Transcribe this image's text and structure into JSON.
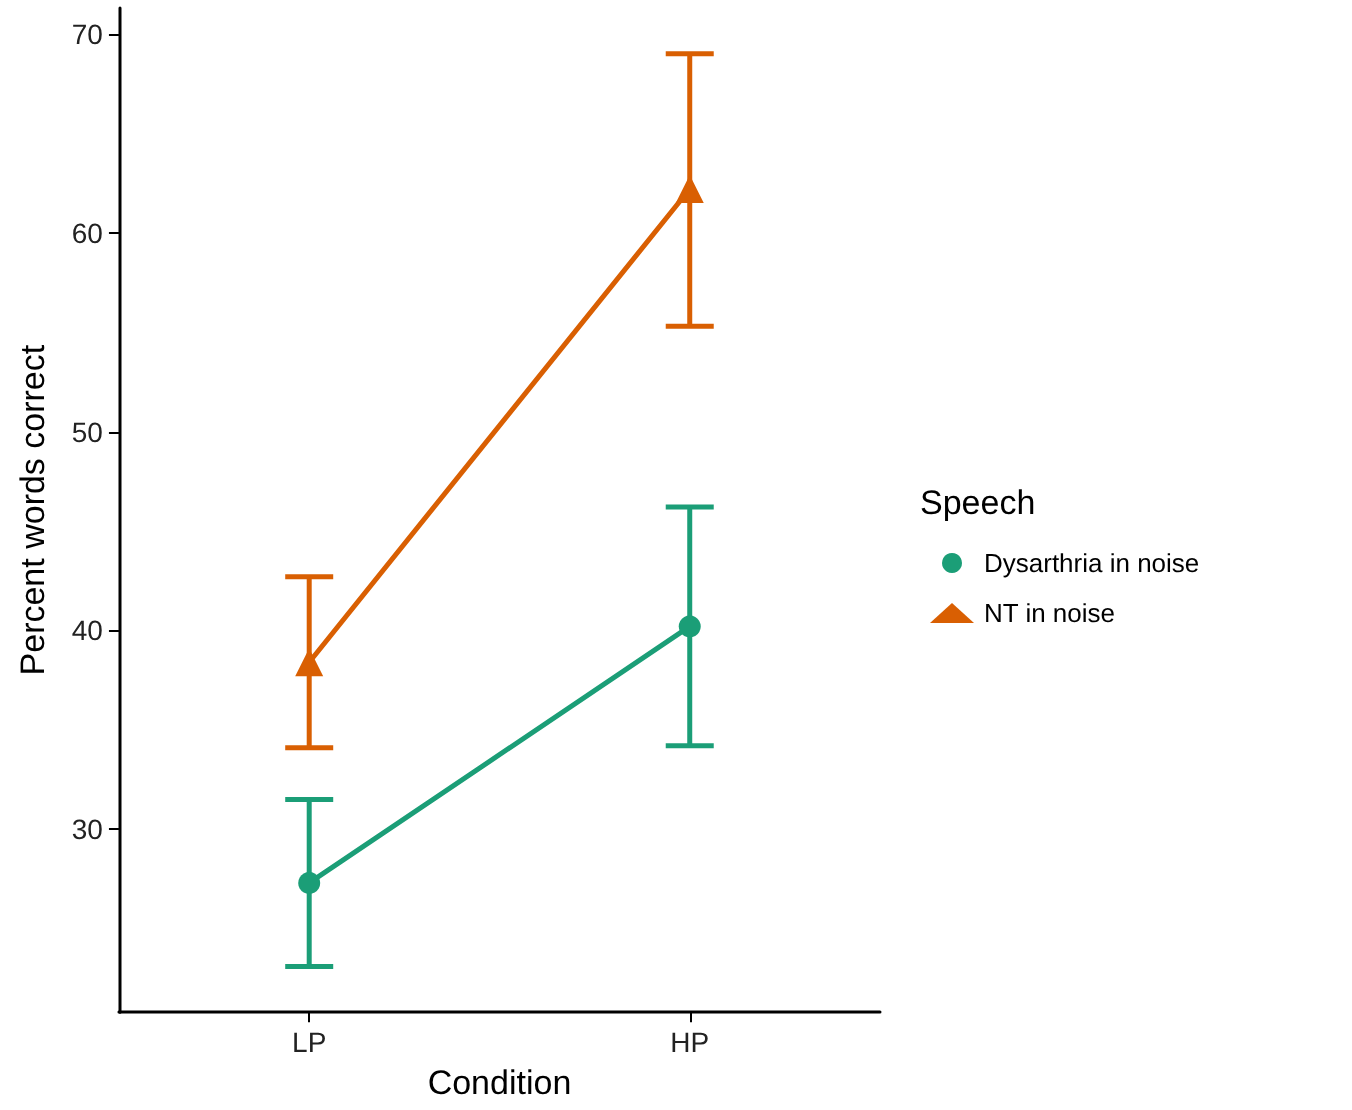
{
  "chart_data": {
    "type": "line",
    "xlabel": "Condition",
    "ylabel": "Percent words correct",
    "legend_title": "Speech",
    "categories": [
      "LP",
      "HP"
    ],
    "series": [
      {
        "name": "Dysarthria in noise",
        "color": "#1b9e77",
        "marker": "circle",
        "values": [
          27.3,
          40.2
        ],
        "errors": [
          [
            23.1,
            31.5
          ],
          [
            34.2,
            46.2
          ]
        ]
      },
      {
        "name": "NT in noise",
        "color": "#d95f02",
        "marker": "triangle",
        "values": [
          38.4,
          62.2
        ],
        "errors": [
          [
            34.1,
            42.7
          ],
          [
            55.3,
            69.0
          ]
        ]
      }
    ],
    "ylim": [
      20.8,
      71.3
    ],
    "yticks": [
      30,
      40,
      50,
      60,
      70
    ],
    "grid": false,
    "legend": "right",
    "line_style": "solid"
  }
}
